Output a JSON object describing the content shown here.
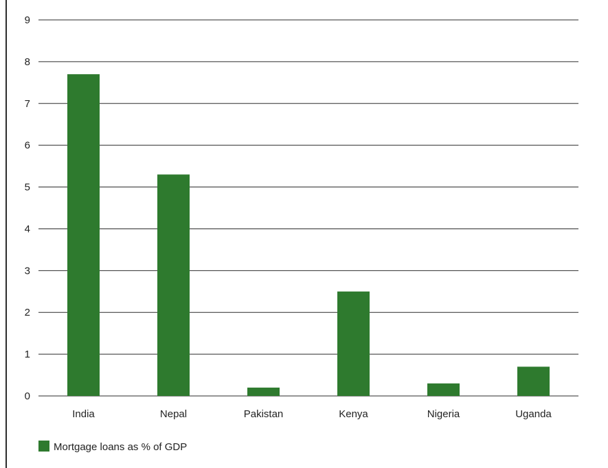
{
  "chart_data": {
    "type": "bar",
    "categories": [
      "India",
      "Nepal",
      "Pakistan",
      "Kenya",
      "Nigeria",
      "Uganda"
    ],
    "series": [
      {
        "name": "Mortgage loans as % of GDP",
        "values": [
          7.7,
          5.3,
          0.2,
          2.5,
          0.3,
          0.7
        ]
      }
    ],
    "ylim": [
      0,
      9
    ],
    "yticks": [
      0,
      1,
      2,
      3,
      4,
      5,
      6,
      7,
      8,
      9
    ],
    "grid": true,
    "legend": "bottom-left"
  },
  "colors": {
    "bar": "#2e7a2e",
    "grid": "#2b2b2b"
  }
}
